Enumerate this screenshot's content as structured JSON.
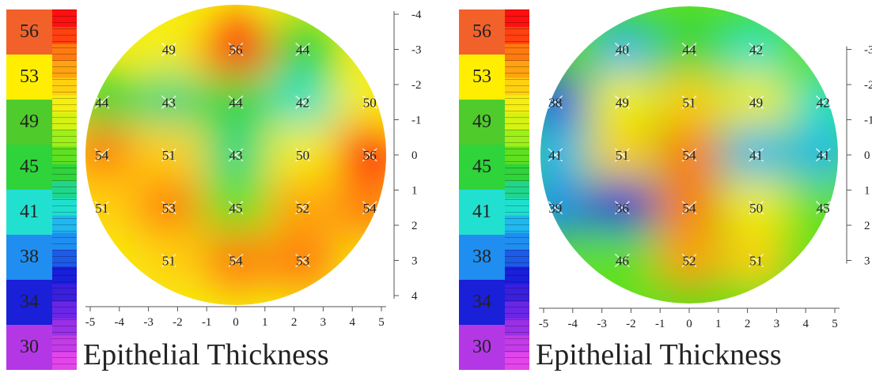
{
  "chart_data": [
    {
      "type": "heatmap",
      "title": "Epithelial Thickness",
      "color_scale": {
        "stops": [
          {
            "value": "56",
            "color": "#f2612a"
          },
          {
            "value": "53",
            "color": "#ffee00"
          },
          {
            "value": "49",
            "color": "#4fcc2c"
          },
          {
            "value": "45",
            "color": "#2fd33a"
          },
          {
            "value": "41",
            "color": "#22e0d0"
          },
          {
            "value": "38",
            "color": "#1f8ef0"
          },
          {
            "value": "34",
            "color": "#1a1fd8"
          },
          {
            "value": "30",
            "color": "#b437e6"
          }
        ]
      },
      "x_ticks": [
        "-5",
        "-4",
        "-3",
        "-2",
        "-1",
        "0",
        "1",
        "2",
        "3",
        "4",
        "5"
      ],
      "y_ticks": [
        "-4",
        "-3",
        "-2",
        "-1",
        "0",
        "1",
        "2",
        "3",
        "4"
      ],
      "xlim": [
        -5,
        5
      ],
      "ylim": [
        -4,
        4
      ],
      "points": [
        {
          "x": -2.3,
          "y": -3,
          "value": 49
        },
        {
          "x": 0,
          "y": -3,
          "value": 56
        },
        {
          "x": 2.3,
          "y": -3,
          "value": 44
        },
        {
          "x": -4.6,
          "y": -1.5,
          "value": 44
        },
        {
          "x": -2.3,
          "y": -1.5,
          "value": 43
        },
        {
          "x": 0,
          "y": -1.5,
          "value": 44
        },
        {
          "x": 2.3,
          "y": -1.5,
          "value": 42
        },
        {
          "x": 4.6,
          "y": -1.5,
          "value": 50
        },
        {
          "x": -4.6,
          "y": 0,
          "value": 54
        },
        {
          "x": -2.3,
          "y": 0,
          "value": 51
        },
        {
          "x": 0,
          "y": 0,
          "value": 43
        },
        {
          "x": 2.3,
          "y": 0,
          "value": 50
        },
        {
          "x": 4.6,
          "y": 0,
          "value": 56
        },
        {
          "x": -4.6,
          "y": 1.5,
          "value": 51
        },
        {
          "x": -2.3,
          "y": 1.5,
          "value": 53
        },
        {
          "x": 0,
          "y": 1.5,
          "value": 45
        },
        {
          "x": 2.3,
          "y": 1.5,
          "value": 52
        },
        {
          "x": 4.6,
          "y": 1.5,
          "value": 54
        },
        {
          "x": -2.3,
          "y": 3,
          "value": 51
        },
        {
          "x": 0,
          "y": 3,
          "value": 54
        },
        {
          "x": 2.3,
          "y": 3,
          "value": 53
        }
      ]
    },
    {
      "type": "heatmap",
      "title": "Epithelial Thickness",
      "color_scale": {
        "stops": [
          {
            "value": "56",
            "color": "#f2612a"
          },
          {
            "value": "53",
            "color": "#ffee00"
          },
          {
            "value": "49",
            "color": "#4fcc2c"
          },
          {
            "value": "45",
            "color": "#2fd33a"
          },
          {
            "value": "41",
            "color": "#22e0d0"
          },
          {
            "value": "38",
            "color": "#1f8ef0"
          },
          {
            "value": "34",
            "color": "#1a1fd8"
          },
          {
            "value": "30",
            "color": "#b437e6"
          }
        ]
      },
      "x_ticks": [
        "-5",
        "-4",
        "-3",
        "-2",
        "-1",
        "0",
        "1",
        "2",
        "3",
        "4",
        "5"
      ],
      "y_ticks": [
        "-3",
        "-2",
        "-1",
        "0",
        "1",
        "2",
        "3"
      ],
      "xlim": [
        -5,
        5
      ],
      "ylim": [
        -4,
        4
      ],
      "points": [
        {
          "x": -2.3,
          "y": -3,
          "value": 40
        },
        {
          "x": 0,
          "y": -3,
          "value": 44
        },
        {
          "x": 2.3,
          "y": -3,
          "value": 42
        },
        {
          "x": -4.6,
          "y": -1.5,
          "value": 38
        },
        {
          "x": -2.3,
          "y": -1.5,
          "value": 49
        },
        {
          "x": 0,
          "y": -1.5,
          "value": 51
        },
        {
          "x": 2.3,
          "y": -1.5,
          "value": 49
        },
        {
          "x": 4.6,
          "y": -1.5,
          "value": 42
        },
        {
          "x": -4.6,
          "y": 0,
          "value": 41
        },
        {
          "x": -2.3,
          "y": 0,
          "value": 51
        },
        {
          "x": 0,
          "y": 0,
          "value": 54
        },
        {
          "x": 2.3,
          "y": 0,
          "value": 41
        },
        {
          "x": 4.6,
          "y": 0,
          "value": 41
        },
        {
          "x": -4.6,
          "y": 1.5,
          "value": 39
        },
        {
          "x": -2.3,
          "y": 1.5,
          "value": 36
        },
        {
          "x": 0,
          "y": 1.5,
          "value": 54
        },
        {
          "x": 2.3,
          "y": 1.5,
          "value": 50
        },
        {
          "x": 4.6,
          "y": 1.5,
          "value": 45
        },
        {
          "x": -2.3,
          "y": 3,
          "value": 46
        },
        {
          "x": 0,
          "y": 3,
          "value": 52
        },
        {
          "x": 2.3,
          "y": 3,
          "value": 51
        }
      ]
    }
  ]
}
